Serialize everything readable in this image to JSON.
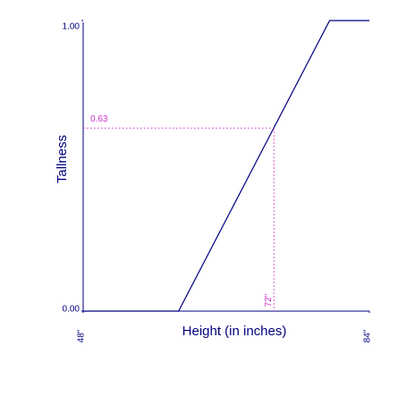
{
  "chart_data": {
    "type": "line",
    "xlabel": "Height (in inches)",
    "ylabel": "Tallness",
    "x": [
      48,
      60,
      79,
      84
    ],
    "series": [
      {
        "color": "#000080",
        "values": [
          0,
          0,
          1,
          1
        ]
      }
    ],
    "xlim": [
      48,
      84
    ],
    "ylim": [
      0,
      1
    ],
    "xticks": [
      {
        "value": 48,
        "label": "48\""
      },
      {
        "value": 84,
        "label": "84\""
      }
    ],
    "yticks": [
      {
        "value": 0,
        "label": "0.00"
      },
      {
        "value": 1,
        "label": "1.00"
      }
    ],
    "annotation": {
      "x": 72,
      "y": 0.63,
      "x_label": "72\"",
      "y_label": "0.63",
      "color": "#cc33cc"
    }
  }
}
